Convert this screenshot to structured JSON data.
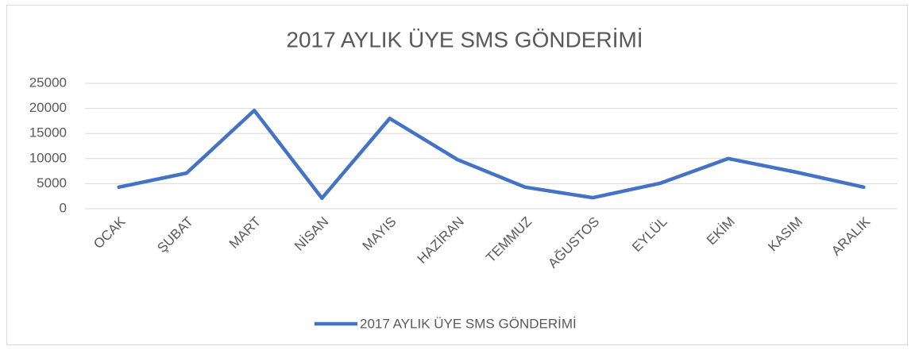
{
  "chart_data": {
    "type": "line",
    "title": "2017 AYLIK ÜYE SMS GÖNDERİMİ",
    "categories": [
      "OCAK",
      "ŞUBAT",
      "MART",
      "NİSAN",
      "MAYIS",
      "HAZİRAN",
      "TEMMUZ",
      "AĞUSTOS",
      "EYLÜL",
      "EKİM",
      "KASIM",
      "ARALIK"
    ],
    "series": [
      {
        "name": "2017 AYLIK ÜYE SMS GÖNDERİMİ",
        "color": "#4472c4",
        "values": [
          4300,
          7100,
          19600,
          2100,
          18000,
          9800,
          4300,
          2200,
          5100,
          10000,
          7300,
          4300
        ]
      }
    ],
    "ylim": [
      0,
      25000
    ],
    "yticks": [
      0,
      5000,
      10000,
      15000,
      20000,
      25000
    ],
    "grid": true,
    "legend": "bottom"
  }
}
